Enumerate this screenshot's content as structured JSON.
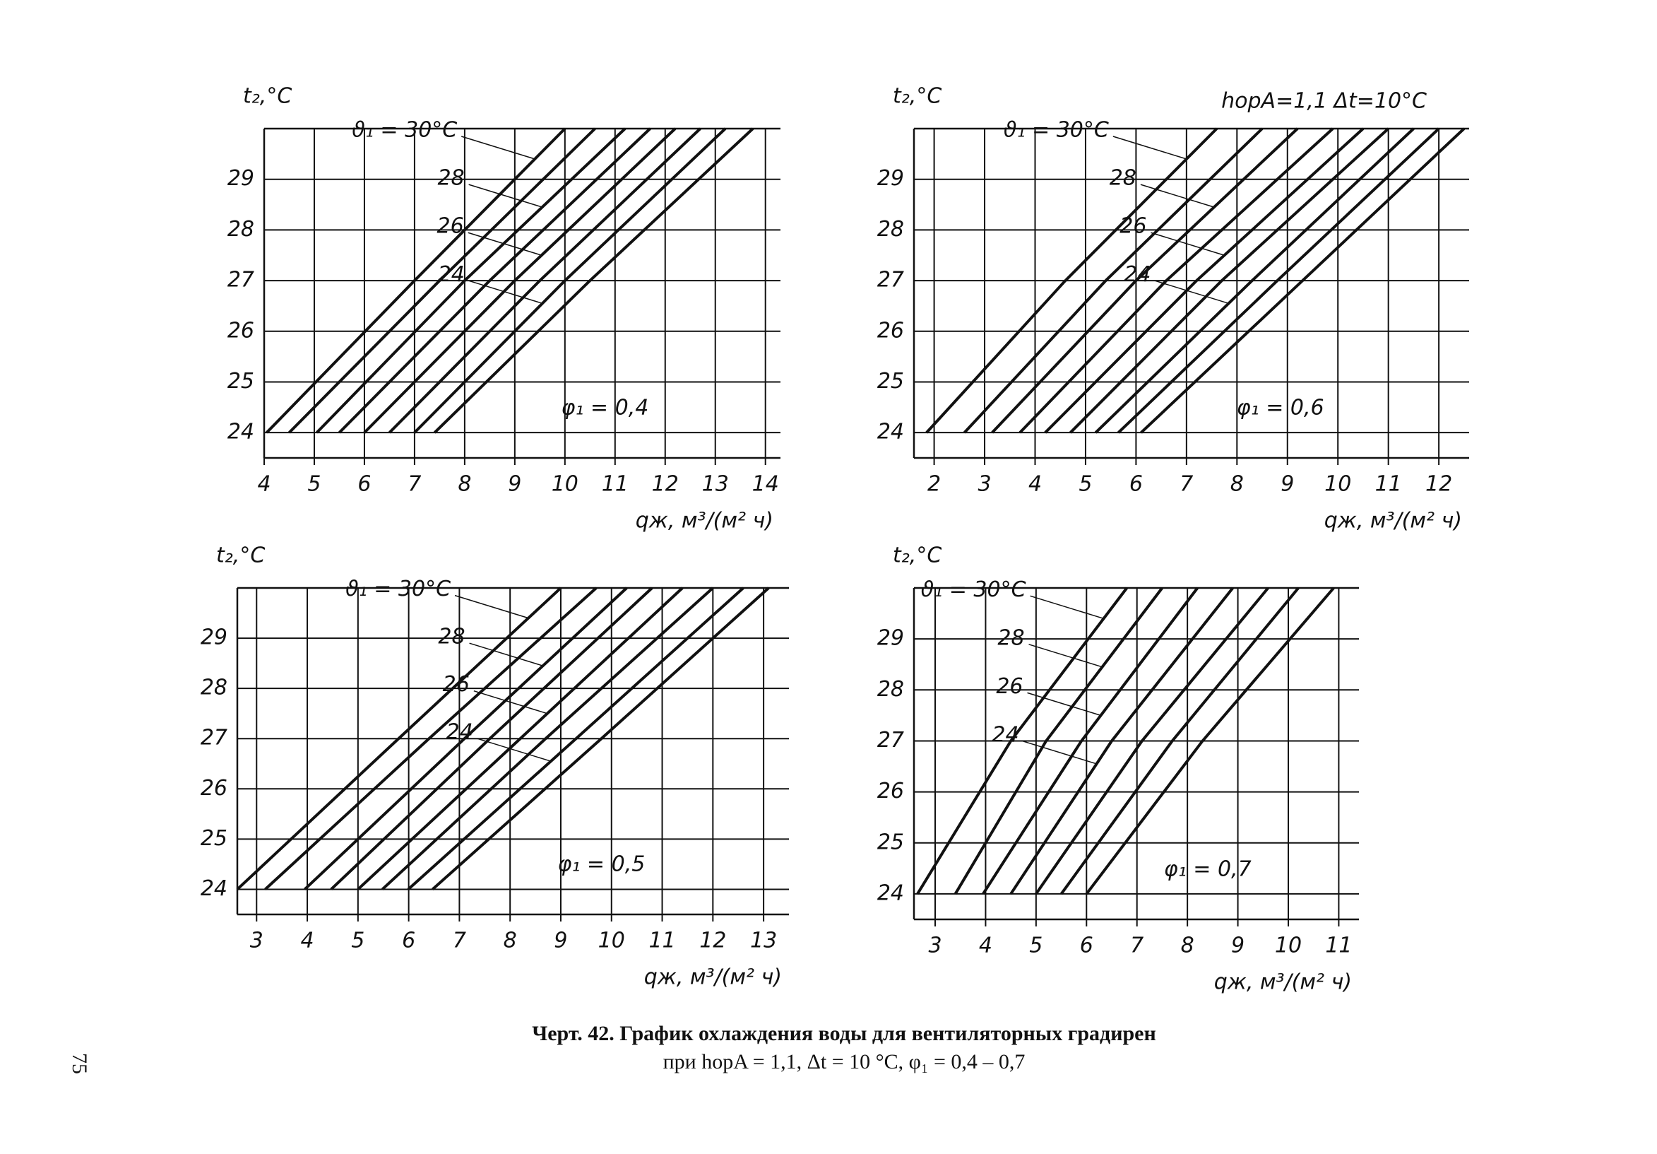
{
  "chart_data": [
    {
      "type": "line",
      "y_label": "t₂,°C",
      "x_label": "qж, м³/(м² ч)",
      "annotation": "φ₁ = 0,4",
      "color": "#111111",
      "grid": true,
      "xlim": [
        4,
        14.3
      ],
      "ylim": [
        23.5,
        30
      ],
      "xticks": [
        4,
        5,
        6,
        7,
        8,
        9,
        10,
        11,
        12,
        13,
        14
      ],
      "yticks": [
        24,
        25,
        26,
        27,
        28,
        29
      ],
      "series": [
        {
          "name": "ϑ₁ = 30°C",
          "x": [
            4.05,
            7.0,
            10.0
          ],
          "values": [
            24,
            27,
            30
          ]
        },
        {
          "x": [
            4.5,
            7.5,
            10.6
          ],
          "values": [
            24,
            27,
            30
          ]
        },
        {
          "name": "28",
          "x": [
            5.05,
            8.0,
            11.2
          ],
          "values": [
            24,
            27,
            30
          ]
        },
        {
          "x": [
            5.5,
            8.5,
            11.7
          ],
          "values": [
            24,
            27,
            30
          ]
        },
        {
          "name": "26",
          "x": [
            6.0,
            9.0,
            12.2
          ],
          "values": [
            24,
            27,
            30
          ]
        },
        {
          "x": [
            6.5,
            9.5,
            12.7
          ],
          "values": [
            24,
            27,
            30
          ]
        },
        {
          "name": "24",
          "x": [
            7.0,
            10.0,
            13.2
          ],
          "values": [
            24,
            27,
            30
          ]
        },
        {
          "x": [
            7.4,
            10.5,
            13.75
          ],
          "values": [
            24,
            27,
            30
          ]
        }
      ]
    },
    {
      "type": "line",
      "y_label": "t₂,°C",
      "x_label": "qж, м³/(м² ч)",
      "annotation": "φ₁ = 0,6",
      "note": "hорA=1,1  Δt=10°C",
      "color": "#111111",
      "grid": true,
      "xlim": [
        1.6,
        12.6
      ],
      "ylim": [
        23.5,
        30
      ],
      "xticks": [
        2,
        3,
        4,
        5,
        6,
        7,
        8,
        9,
        10,
        11,
        12
      ],
      "yticks": [
        24,
        25,
        26,
        27,
        28,
        29
      ],
      "series": [
        {
          "name": "ϑ₁ = 30°C",
          "x": [
            1.85,
            4.6,
            7.6
          ],
          "values": [
            24,
            27,
            30
          ]
        },
        {
          "x": [
            2.6,
            5.4,
            8.5
          ],
          "values": [
            24,
            27,
            30
          ]
        },
        {
          "name": "28",
          "x": [
            3.15,
            6.0,
            9.2
          ],
          "values": [
            24,
            27,
            30
          ]
        },
        {
          "x": [
            3.7,
            6.6,
            9.9
          ],
          "values": [
            24,
            27,
            30
          ]
        },
        {
          "name": "26",
          "x": [
            4.2,
            7.2,
            10.5
          ],
          "values": [
            24,
            27,
            30
          ]
        },
        {
          "x": [
            4.7,
            7.7,
            11.0
          ],
          "values": [
            24,
            27,
            30
          ]
        },
        {
          "name": "24",
          "x": [
            5.2,
            8.3,
            11.5
          ],
          "values": [
            24,
            27,
            30
          ]
        },
        {
          "x": [
            5.65,
            8.8,
            12.0
          ],
          "values": [
            24,
            27,
            30
          ]
        },
        {
          "x": [
            6.1,
            9.3,
            12.5
          ],
          "values": [
            24,
            27,
            30
          ]
        }
      ]
    },
    {
      "type": "line",
      "y_label": "t₂,°C",
      "x_label": "qж, м³/(м² ч)",
      "annotation": "φ₁ = 0,5",
      "color": "#111111",
      "grid": true,
      "xlim": [
        2.62,
        13.5
      ],
      "ylim": [
        23.5,
        30
      ],
      "xticks": [
        3,
        4,
        5,
        6,
        7,
        8,
        9,
        10,
        11,
        12,
        13
      ],
      "yticks": [
        24,
        25,
        26,
        27,
        28,
        29
      ],
      "series": [
        {
          "name": "ϑ₁ = 30°C",
          "x": [
            2.62,
            5.8,
            9.0
          ],
          "values": [
            24,
            27,
            30
          ]
        },
        {
          "x": [
            3.17,
            6.4,
            9.7
          ],
          "values": [
            24,
            27,
            30
          ]
        },
        {
          "name": "28",
          "x": [
            3.95,
            7.1,
            10.3
          ],
          "values": [
            24,
            27,
            30
          ]
        },
        {
          "x": [
            4.47,
            7.6,
            10.8
          ],
          "values": [
            24,
            27,
            30
          ]
        },
        {
          "name": "26",
          "x": [
            5.0,
            8.2,
            11.4
          ],
          "values": [
            24,
            27,
            30
          ]
        },
        {
          "x": [
            5.48,
            8.7,
            12.0
          ],
          "values": [
            24,
            27,
            30
          ]
        },
        {
          "name": "24",
          "x": [
            5.99,
            9.3,
            12.6
          ],
          "values": [
            24,
            27,
            30
          ]
        },
        {
          "x": [
            6.47,
            9.8,
            13.1
          ],
          "values": [
            24,
            27,
            30
          ]
        }
      ]
    },
    {
      "type": "line",
      "y_label": "t₂,°C",
      "x_label": "qж, м³/(м² ч)",
      "annotation": "φ₁ = 0,7",
      "color": "#111111",
      "grid": true,
      "xlim": [
        2.58,
        11.4
      ],
      "ylim": [
        23.5,
        30
      ],
      "xticks": [
        3,
        4,
        5,
        6,
        7,
        8,
        9,
        10,
        11
      ],
      "yticks": [
        24,
        25,
        26,
        27,
        28,
        29
      ],
      "series": [
        {
          "name": "ϑ₁ = 30°C",
          "x": [
            2.65,
            4.5,
            6.8
          ],
          "values": [
            24,
            27,
            30
          ]
        },
        {
          "name": "28",
          "x": [
            3.4,
            5.2,
            7.5
          ],
          "values": [
            24,
            27,
            30
          ]
        },
        {
          "name": "26",
          "x": [
            3.95,
            5.9,
            8.2
          ],
          "values": [
            24,
            27,
            30
          ]
        },
        {
          "name": "24",
          "x": [
            4.5,
            6.5,
            8.9
          ],
          "values": [
            24,
            27,
            30
          ]
        },
        {
          "x": [
            5.0,
            7.1,
            9.6
          ],
          "values": [
            24,
            27,
            30
          ]
        },
        {
          "x": [
            5.5,
            7.7,
            10.2
          ],
          "values": [
            24,
            27,
            30
          ]
        },
        {
          "x": [
            6.0,
            8.3,
            10.9
          ],
          "values": [
            24,
            27,
            30
          ]
        }
      ]
    }
  ],
  "caption": {
    "line1": "Черт. 42. График охлаждения воды для вентиляторных градирен",
    "line2": "при hорA = 1,1, Δt = 10 °C, φ₁ = 0,4 – 0,7"
  },
  "page_number": "75"
}
